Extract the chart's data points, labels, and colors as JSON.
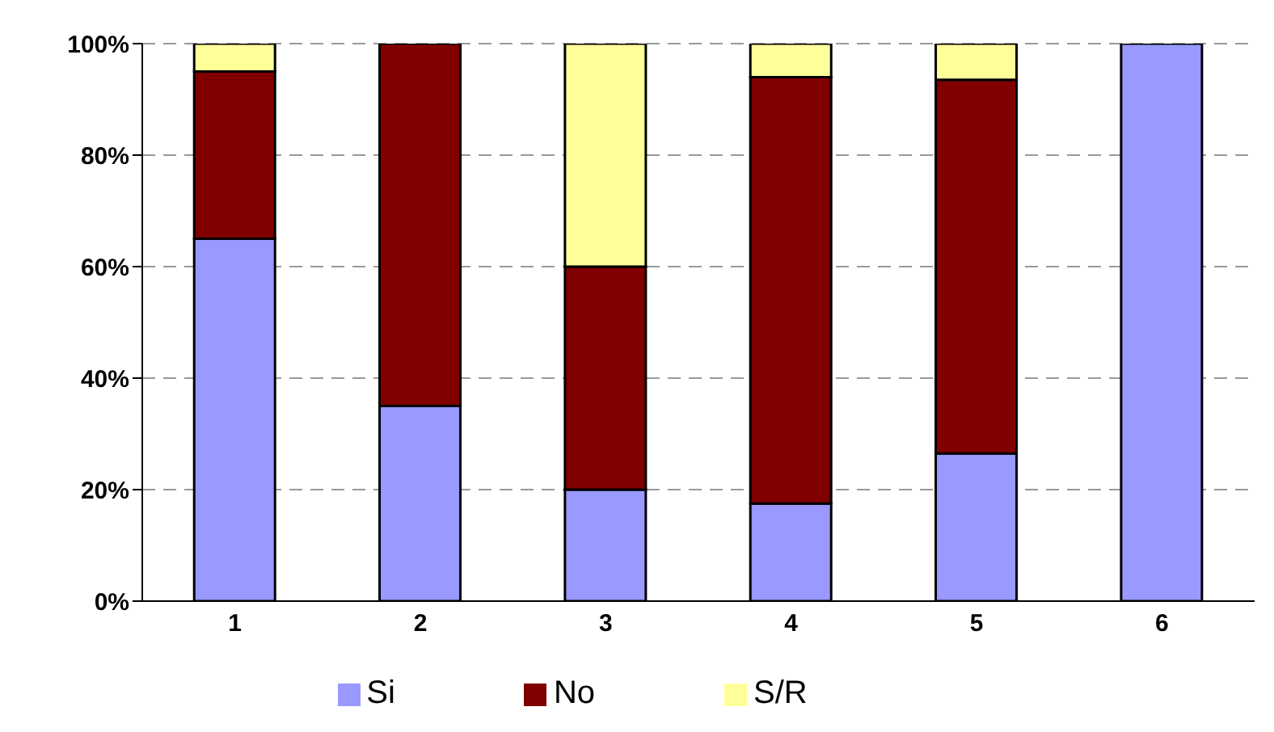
{
  "chart_data": {
    "type": "bar",
    "stacked": true,
    "categories": [
      "1",
      "2",
      "3",
      "4",
      "5",
      "6"
    ],
    "series": [
      {
        "name": "Si",
        "color": "#9999ff",
        "values": [
          65,
          35,
          20,
          17.5,
          26.5,
          100
        ]
      },
      {
        "name": "No",
        "color": "#800000",
        "values": [
          30,
          65,
          40,
          76.5,
          67,
          0
        ]
      },
      {
        "name": "S/R",
        "color": "#ffff99",
        "values": [
          5,
          0,
          40,
          6,
          6.5,
          0
        ]
      }
    ],
    "ylim": [
      0,
      100
    ],
    "yticks": [
      {
        "value": 0,
        "label": "0%"
      },
      {
        "value": 20,
        "label": "20%"
      },
      {
        "value": 40,
        "label": "40%"
      },
      {
        "value": 60,
        "label": "60%"
      },
      {
        "value": 80,
        "label": "80%"
      },
      {
        "value": 100,
        "label": "100%"
      }
    ],
    "grid": "y",
    "legend": "bottom"
  }
}
